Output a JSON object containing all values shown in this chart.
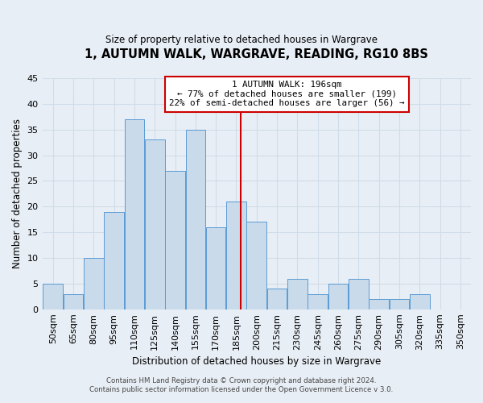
{
  "title": "1, AUTUMN WALK, WARGRAVE, READING, RG10 8BS",
  "subtitle": "Size of property relative to detached houses in Wargrave",
  "xlabel": "Distribution of detached houses by size in Wargrave",
  "ylabel": "Number of detached properties",
  "footer_line1": "Contains HM Land Registry data © Crown copyright and database right 2024.",
  "footer_line2": "Contains public sector information licensed under the Open Government Licence v 3.0.",
  "bin_labels": [
    "50sqm",
    "65sqm",
    "80sqm",
    "95sqm",
    "110sqm",
    "125sqm",
    "140sqm",
    "155sqm",
    "170sqm",
    "185sqm",
    "200sqm",
    "215sqm",
    "230sqm",
    "245sqm",
    "260sqm",
    "275sqm",
    "290sqm",
    "305sqm",
    "320sqm",
    "335sqm",
    "350sqm"
  ],
  "bar_values": [
    5,
    3,
    10,
    19,
    37,
    33,
    27,
    35,
    16,
    21,
    17,
    4,
    6,
    3,
    5,
    6,
    2,
    2,
    3,
    0,
    0
  ],
  "bar_color": "#c9daea",
  "bar_edgecolor": "#5b9bd5",
  "grid_color": "#d0dce8",
  "annotation_line1": "1 AUTUMN WALK: 196sqm",
  "annotation_line2": "← 77% of detached houses are smaller (199)",
  "annotation_line3": "22% of semi-detached houses are larger (56) →",
  "annotation_box_edgecolor": "#cc0000",
  "vline_color": "#cc0000",
  "vline_x": 196,
  "ylim": [
    0,
    45
  ],
  "bin_edges_sqm": [
    50,
    65,
    80,
    95,
    110,
    125,
    140,
    155,
    170,
    185,
    200,
    215,
    230,
    245,
    260,
    275,
    290,
    305,
    320,
    335,
    350
  ],
  "bin_width": 15,
  "background_color": "#e8eef5"
}
